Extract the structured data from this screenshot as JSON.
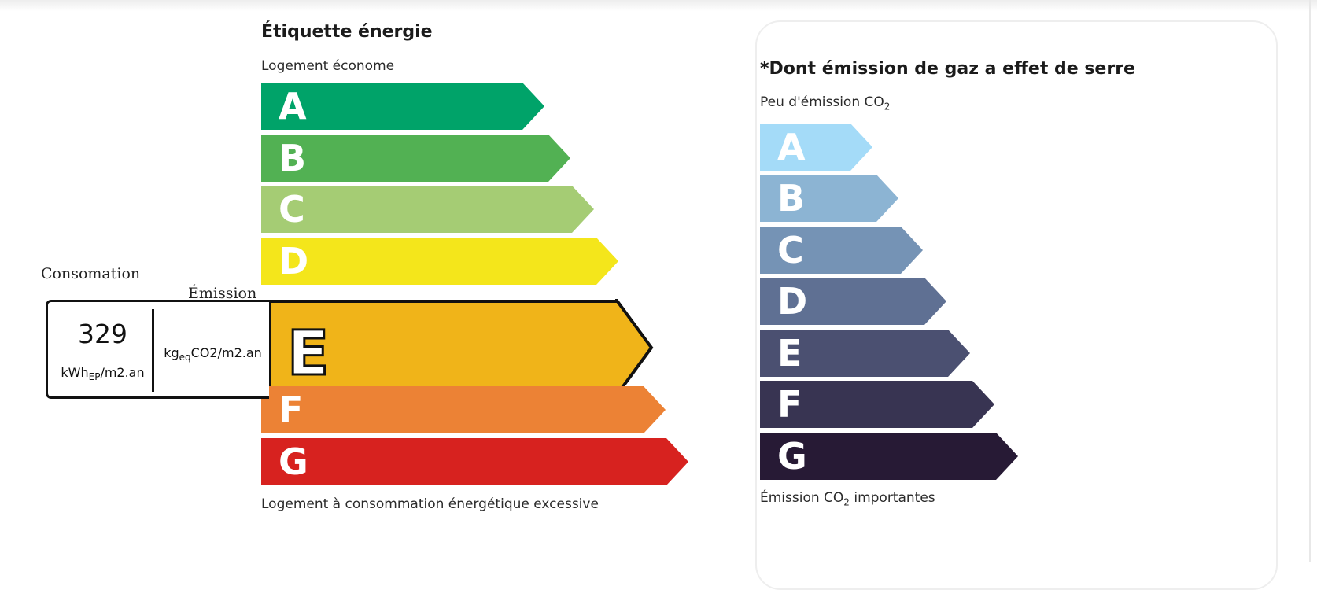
{
  "energy": {
    "title": "Étiquette énergie",
    "top_caption": "Logement économe",
    "bottom_caption": "Logement à consommation énergétique excessive",
    "selected": "E",
    "classes": [
      {
        "letter": "A",
        "color": "#00a369"
      },
      {
        "letter": "B",
        "color": "#52b153"
      },
      {
        "letter": "C",
        "color": "#a5cc74"
      },
      {
        "letter": "D",
        "color": "#f4e61b"
      },
      {
        "letter": "E",
        "color": "#f0b419"
      },
      {
        "letter": "F",
        "color": "#ec8235"
      },
      {
        "letter": "G",
        "color": "#d7221f"
      }
    ]
  },
  "consumption": {
    "label": "Consomation",
    "value": "329",
    "unit_main": "kWh",
    "unit_sub": "EP",
    "unit_rest": "/m2.an"
  },
  "emission": {
    "label": "Émission",
    "unit_main": "kg",
    "unit_sub": "eq",
    "unit_rest": "CO2/m2.an"
  },
  "ges": {
    "title": "*Dont émission de gaz a effet de serre",
    "top_caption": "Peu d'émission CO",
    "top_caption_sub": "2",
    "bottom_caption_pre": "Émission CO",
    "bottom_caption_sub": "2",
    "bottom_caption_post": " importantes",
    "classes": [
      {
        "letter": "A",
        "color": "#a4dbf8"
      },
      {
        "letter": "B",
        "color": "#8cb4d3"
      },
      {
        "letter": "C",
        "color": "#7593b5"
      },
      {
        "letter": "D",
        "color": "#5f7093"
      },
      {
        "letter": "E",
        "color": "#4b5071"
      },
      {
        "letter": "F",
        "color": "#383452"
      },
      {
        "letter": "G",
        "color": "#271a35"
      }
    ]
  }
}
